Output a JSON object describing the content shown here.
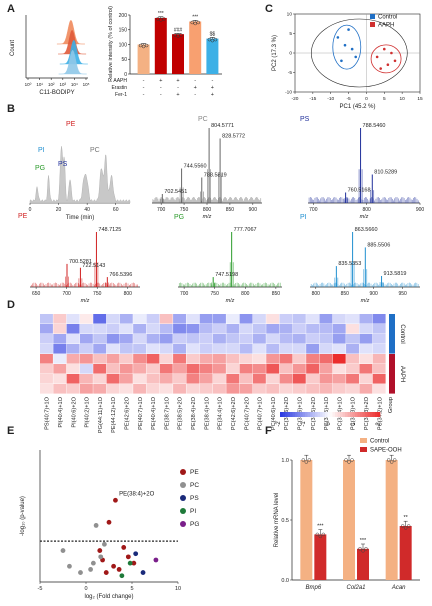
{
  "panels": [
    "A",
    "B",
    "C",
    "D",
    "E",
    "F"
  ],
  "chart_data": [
    {
      "id": "A1",
      "type": "area",
      "xlabel": "C11-BODIPY",
      "ylabel": "Count",
      "x_ticks": [
        "10⁰",
        "10¹",
        "10²",
        "10³",
        "10⁴",
        "10⁵"
      ],
      "series_colors": [
        "#f08a5d",
        "#e05a3a",
        "#3db0e6",
        "#90c8e8"
      ],
      "peak_positions_log10": [
        3.7,
        3.8,
        3.95,
        3.85
      ]
    },
    {
      "id": "A2",
      "type": "bar",
      "ylabel": "Relative intensity (% of control)",
      "ylim": [
        0,
        200
      ],
      "y_ticks": [
        "0",
        "50",
        "100",
        "150",
        "200"
      ],
      "values": [
        100,
        190,
        135,
        178,
        120
      ],
      "errors": [
        3,
        4,
        3,
        4,
        4
      ],
      "colors": [
        "#f4b183",
        "#c00000",
        "#c00000",
        "#f8a070",
        "#3db0e6"
      ],
      "significance": [
        "",
        "***",
        "###",
        "***",
        "$$"
      ],
      "conditions": {
        "labels": [
          "AAPH",
          "Erastin",
          "Fer-1"
        ],
        "rows": [
          [
            "-",
            "+",
            "+",
            "-",
            "-"
          ],
          [
            "-",
            "-",
            "-",
            "+",
            "+"
          ],
          [
            "-",
            "-",
            "+",
            "-",
            "+"
          ]
        ]
      }
    },
    {
      "id": "C",
      "type": "scatter",
      "xlabel": "PC1 (45.2 %)",
      "ylabel": "PC2 (17.3 %)",
      "x_ticks": [
        "-20",
        "-15",
        "-10",
        "-5",
        "0",
        "5",
        "10",
        "15"
      ],
      "y_ticks": [
        "-10",
        "-5",
        "0",
        "5",
        "10"
      ],
      "xlim": [
        -20,
        15
      ],
      "ylim": [
        -10,
        10
      ],
      "series": [
        {
          "name": "Control",
          "color": "#1f6fc5",
          "x": [
            -8,
            -6,
            -5,
            -4,
            -3,
            -7
          ],
          "y": [
            4,
            2,
            6,
            1,
            -1,
            -2
          ]
        },
        {
          "name": "AAPH",
          "color": "#d03030",
          "x": [
            3,
            5,
            6,
            7,
            4,
            8
          ],
          "y": [
            -1,
            1,
            -3,
            0,
            -4,
            -2
          ]
        }
      ]
    },
    {
      "id": "B1",
      "type": "line",
      "xlabel": "Time (min)",
      "xlim": [
        0,
        70
      ],
      "x_ticks": [
        "0",
        "20",
        "40",
        "60"
      ],
      "annotations": [
        {
          "text": "PE",
          "color": "#d02020"
        },
        {
          "text": "PI",
          "color": "#1f8fd0"
        },
        {
          "text": "PG",
          "color": "#2a9a2a"
        },
        {
          "text": "PS",
          "color": "#1f2f9a"
        },
        {
          "text": "PC",
          "color": "#777777"
        }
      ]
    },
    {
      "id": "B2",
      "type": "bar",
      "label": "PC",
      "label_color": "#888888",
      "color": "#666666",
      "xlabel": "m/z",
      "xlim": [
        680,
        920
      ],
      "x_ticks": [
        "700",
        "750",
        "800",
        "850",
        "900"
      ],
      "peaks": [
        {
          "x": 804.5771,
          "h": 1.0
        },
        {
          "x": 828.5772,
          "h": 0.86
        },
        {
          "x": 744.556,
          "h": 0.46
        },
        {
          "x": 788.5819,
          "h": 0.34
        },
        {
          "x": 702.5451,
          "h": 0.12
        }
      ],
      "peak_labels": [
        "804.5771",
        "828.5772",
        "744.5560",
        "788.5819",
        "702.5451"
      ]
    },
    {
      "id": "B3",
      "type": "bar",
      "label": "PS",
      "label_color": "#1f2f9a",
      "color": "#1f2f9a",
      "xlabel": "m/z",
      "xlim": [
        690,
        900
      ],
      "x_ticks": [
        "700",
        "800",
        "900"
      ],
      "peaks": [
        {
          "x": 788.546,
          "h": 1.0
        },
        {
          "x": 810.5289,
          "h": 0.38
        },
        {
          "x": 760.5168,
          "h": 0.14
        }
      ],
      "peak_labels": [
        "788.5460",
        "810.5289",
        "760.5168"
      ]
    },
    {
      "id": "B4",
      "type": "bar",
      "label": "PE",
      "label_color": "#d02020",
      "color": "#d02020",
      "xlabel": "m/z",
      "xlim": [
        640,
        820
      ],
      "x_ticks": [
        "650",
        "700",
        "750",
        "800"
      ],
      "peaks": [
        {
          "x": 748.7125,
          "h": 1.0
        },
        {
          "x": 722.5143,
          "h": 0.35
        },
        {
          "x": 700.5281,
          "h": 0.42
        },
        {
          "x": 766.5396,
          "h": 0.18
        }
      ],
      "peak_labels": [
        "748.7125",
        "722.5143",
        "700.5281",
        "766.5396"
      ]
    },
    {
      "id": "B5",
      "type": "bar",
      "label": "PG",
      "label_color": "#2a9a2a",
      "color": "#2a9a2a",
      "xlabel": "m/z",
      "xlim": [
        690,
        860
      ],
      "x_ticks": [
        "700",
        "750",
        "800",
        "850"
      ],
      "peaks": [
        {
          "x": 777.7067,
          "h": 1.0
        },
        {
          "x": 747.5198,
          "h": 0.18
        }
      ],
      "peak_labels": [
        "777.7067",
        "747.5198"
      ]
    },
    {
      "id": "B6",
      "type": "bar",
      "label": "PI",
      "label_color": "#1f8fd0",
      "color": "#1f8fd0",
      "xlabel": "m/z",
      "xlim": [
        790,
        980
      ],
      "x_ticks": [
        "800",
        "850",
        "900",
        "950"
      ],
      "peaks": [
        {
          "x": 863.566,
          "h": 1.0
        },
        {
          "x": 885.5506,
          "h": 0.72
        },
        {
          "x": 835.5353,
          "h": 0.38
        },
        {
          "x": 913.5819,
          "h": 0.2
        }
      ],
      "peak_labels": [
        "863.5660",
        "885.5506",
        "835.5353",
        "913.5819"
      ]
    },
    {
      "id": "D",
      "type": "heatmap",
      "colorbar_ticks": [
        "-2",
        "-1",
        "0",
        "1",
        "2"
      ],
      "group_label": "Group",
      "groups": [
        {
          "name": "Control",
          "color": "#1f6fc5",
          "rows": 4
        },
        {
          "name": "AAPH",
          "color": "#b0102a",
          "rows": 4
        }
      ],
      "columns": [
        "PS(40:7)+1O",
        "PI(40:4)+1O",
        "PI(40:6)+2O",
        "PI(40:2)+1O",
        "PG(44:11)+1O",
        "PE(44:12)+1O",
        "PE(42:6)+2O",
        "PE(40:7)+1O",
        "PE(40:4)+1O",
        "PE(38:7)+1O",
        "PE(38:5)+2O",
        "PE(38:4)+2O",
        "PE(38:4)+1O",
        "PE(34:4)+1O",
        "PC(42:6)+2O",
        "PC(40:7)+2O",
        "PC(40:7)+1O",
        "PC(40:6)+1O",
        "PC(38:6)+2O",
        "PC(38:6)+1O",
        "PC(38:5)+2O",
        "PC(38:5)+1O",
        "PC(38:4)+1O",
        "PC(38:3)+1O",
        "PC(38:3)+2O",
        "PC(34:2)+1O"
      ],
      "values": [
        [
          -0.6,
          0.5,
          -0.3,
          0.2,
          -1.5,
          -0.4,
          -0.8,
          -0.2,
          -0.5,
          0.6,
          -0.9,
          -0.3,
          -1.0,
          -1.0,
          -0.2,
          -1.1,
          -0.4,
          0.3,
          -0.5,
          -0.6,
          -0.3,
          -1.0,
          -0.4,
          -0.3,
          -0.8,
          -1.2
        ],
        [
          -0.9,
          0.4,
          -1.3,
          -0.4,
          -0.4,
          -0.5,
          -0.3,
          -0.8,
          -0.4,
          -0.7,
          -1.2,
          -1.1,
          -0.7,
          -0.5,
          -0.8,
          -0.4,
          -0.6,
          -0.9,
          -0.8,
          -0.5,
          -0.7,
          -0.7,
          -0.9,
          0.3,
          -0.4,
          -0.6
        ],
        [
          -0.5,
          -0.9,
          -0.3,
          -0.9,
          -0.6,
          -1.1,
          -0.9,
          -0.4,
          -0.8,
          -1.0,
          -0.5,
          -0.6,
          -0.5,
          -0.8,
          -0.6,
          -0.5,
          -0.8,
          -0.4,
          -0.7,
          -0.8,
          -0.5,
          -0.6,
          -1.0,
          -0.6,
          -1.0,
          -0.5
        ],
        [
          -0.4,
          -1.3,
          -0.8,
          -0.5,
          -0.9,
          -0.3,
          -0.6,
          -0.6,
          -0.3,
          -0.4,
          -0.8,
          -0.3,
          -0.5,
          -0.4,
          -0.4,
          -0.7,
          -0.3,
          -0.7,
          -0.4,
          -0.4,
          -1.0,
          -0.4,
          -0.3,
          -0.8,
          -0.3,
          -0.4
        ],
        [
          1.2,
          -0.2,
          0.8,
          1.0,
          0.6,
          0.9,
          0.5,
          1.1,
          1.5,
          0.4,
          1.3,
          0.5,
          0.8,
          0.9,
          0.6,
          0.4,
          0.3,
          1.0,
          1.3,
          0.5,
          1.2,
          1.4,
          2.0,
          0.6,
          0.3,
          0.7
        ],
        [
          0.5,
          0.9,
          0.3,
          -0.4,
          1.4,
          0.6,
          1.0,
          0.8,
          0.5,
          1.3,
          0.9,
          1.4,
          1.2,
          1.0,
          0.4,
          1.2,
          1.1,
          1.6,
          0.6,
          1.0,
          1.5,
          0.9,
          0.3,
          0.5,
          1.3,
          0.6
        ],
        [
          0.4,
          0.3,
          1.5,
          0.7,
          0.4,
          1.4,
          0.9,
          0.3,
          0.6,
          0.8,
          0.5,
          1.2,
          0.9,
          0.4,
          1.3,
          0.6,
          1.3,
          0.4,
          1.1,
          1.6,
          0.5,
          1.0,
          0.9,
          1.3,
          0.4,
          1.5
        ],
        [
          0.3,
          0.6,
          0.5,
          0.9,
          0.8,
          0.4,
          0.3,
          0.7,
          0.4,
          0.3,
          0.7,
          0.4,
          0.5,
          0.6,
          1.0,
          0.9,
          0.5,
          0.6,
          0.4,
          0.5,
          0.6,
          0.7,
          0.5,
          0.4,
          0.8,
          0.3
        ]
      ]
    },
    {
      "id": "E",
      "type": "scatter",
      "xlabel": "log₂ (Fold change)",
      "ylabel": "-log₁₀ (p-value)",
      "xlim": [
        -5,
        10
      ],
      "ylim": [
        0,
        4.2
      ],
      "x_ticks": [
        "-5",
        "0",
        "5",
        "10"
      ],
      "threshold_y": 1.3,
      "highlight_label": "PE(38:4)+2O",
      "series": [
        {
          "name": "PE",
          "color": "#a01818",
          "x": [
            3.2,
            2.5,
            4.1,
            1.8,
            3.0,
            4.6,
            2.2,
            1.5,
            3.6,
            5.2
          ],
          "y": [
            2.6,
            1.9,
            1.1,
            0.7,
            0.5,
            0.8,
            0.3,
            1.0,
            0.4,
            0.6
          ]
        },
        {
          "name": "PC",
          "color": "#909090",
          "x": [
            -2.5,
            -1.8,
            0.5,
            1.1,
            2.0,
            -0.6,
            1.6,
            0.8
          ],
          "y": [
            1.0,
            0.5,
            0.4,
            1.8,
            1.2,
            0.3,
            0.8,
            0.6
          ]
        },
        {
          "name": "PS",
          "color": "#1a2a7a",
          "x": [
            5.4,
            6.2
          ],
          "y": [
            0.9,
            0.3
          ]
        },
        {
          "name": "PI",
          "color": "#1f7a3a",
          "x": [
            4.8,
            3.9
          ],
          "y": [
            0.6,
            0.2
          ]
        },
        {
          "name": "PG",
          "color": "#7a1f8a",
          "x": [
            7.6
          ],
          "y": [
            0.7
          ]
        }
      ]
    },
    {
      "id": "F",
      "type": "bar",
      "ylabel": "Relative mRNA level",
      "ylim": [
        0,
        1.0
      ],
      "y_ticks": [
        "0.0",
        "0.5",
        "1.0"
      ],
      "categories": [
        "Bmp6",
        "Col2a1",
        "Acan"
      ],
      "series": [
        {
          "name": "Control",
          "color": "#f4b183",
          "values": [
            1.0,
            1.0,
            1.0
          ]
        },
        {
          "name": "SAPE-OOH",
          "color": "#d02a2a",
          "values": [
            0.38,
            0.26,
            0.45
          ]
        }
      ],
      "significance": [
        "***",
        "***",
        "**"
      ]
    }
  ]
}
